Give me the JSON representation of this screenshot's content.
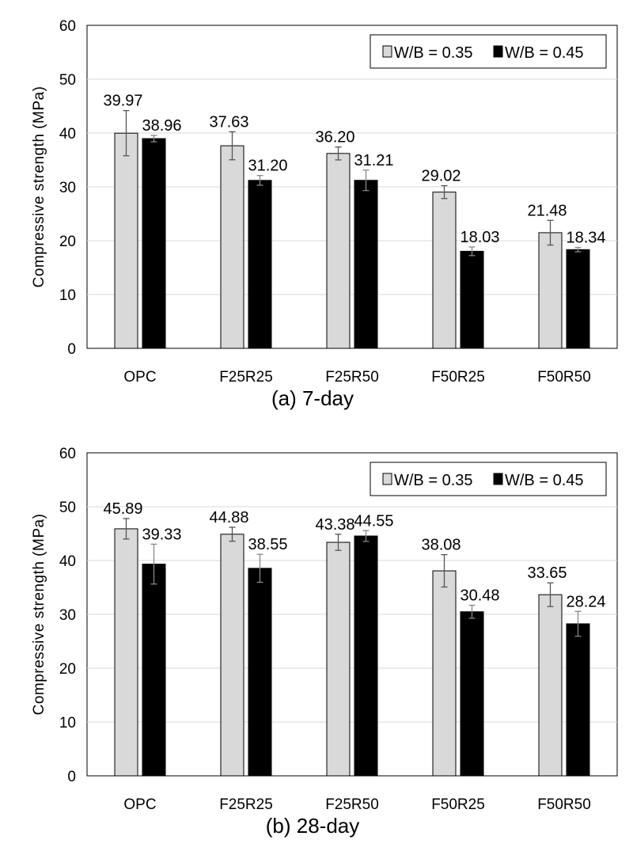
{
  "colors": {
    "series1": "#d9d9d9",
    "series2": "#000000",
    "grid": "#d9d9d9",
    "border": "#000000"
  },
  "chart_data": [
    {
      "type": "bar",
      "caption": "(a)  7-day",
      "categories": [
        "OPC",
        "F25R25",
        "F25R50",
        "F50R25",
        "F50R50"
      ],
      "ylabel": "Compressive  strength  (MPa)",
      "ylim": [
        0,
        60
      ],
      "yticks": [
        "0",
        "10",
        "20",
        "30",
        "40",
        "50",
        "60"
      ],
      "grid": true,
      "legend_position": "top-right",
      "series": [
        {
          "name": "W/B = 0.35",
          "values": [
            39.97,
            37.63,
            36.2,
            29.02,
            21.48
          ],
          "labels": [
            "39.97",
            "37.63",
            "36.20",
            "29.02",
            "21.48"
          ],
          "err": [
            4.2,
            2.6,
            1.2,
            1.2,
            2.3
          ]
        },
        {
          "name": "W/B = 0.45",
          "values": [
            38.96,
            31.2,
            31.21,
            18.03,
            18.34
          ],
          "labels": [
            "38.96",
            "31.20",
            "31.21",
            "18.03",
            "18.34"
          ],
          "err": [
            0.6,
            0.9,
            1.9,
            0.8,
            0.4
          ]
        }
      ]
    },
    {
      "type": "bar",
      "caption": "(b)  28-day",
      "categories": [
        "OPC",
        "F25R25",
        "F25R50",
        "F50R25",
        "F50R50"
      ],
      "ylabel": "Compressive  strength  (MPa)",
      "ylim": [
        0,
        60
      ],
      "yticks": [
        "0",
        "10",
        "20",
        "30",
        "40",
        "50",
        "60"
      ],
      "grid": true,
      "legend_position": "top-right",
      "series": [
        {
          "name": "W/B = 0.35",
          "values": [
            45.89,
            44.88,
            43.38,
            38.08,
            33.65
          ],
          "labels": [
            "45.89",
            "44.88",
            "43.38",
            "38.08",
            "33.65"
          ],
          "err": [
            1.9,
            1.3,
            1.5,
            3.0,
            2.2
          ]
        },
        {
          "name": "W/B = 0.45",
          "values": [
            39.33,
            38.55,
            44.55,
            30.48,
            28.24
          ],
          "labels": [
            "39.33",
            "38.55",
            "44.55",
            "30.48",
            "28.24"
          ],
          "err": [
            3.7,
            2.6,
            1.0,
            1.2,
            2.3
          ]
        }
      ]
    }
  ]
}
